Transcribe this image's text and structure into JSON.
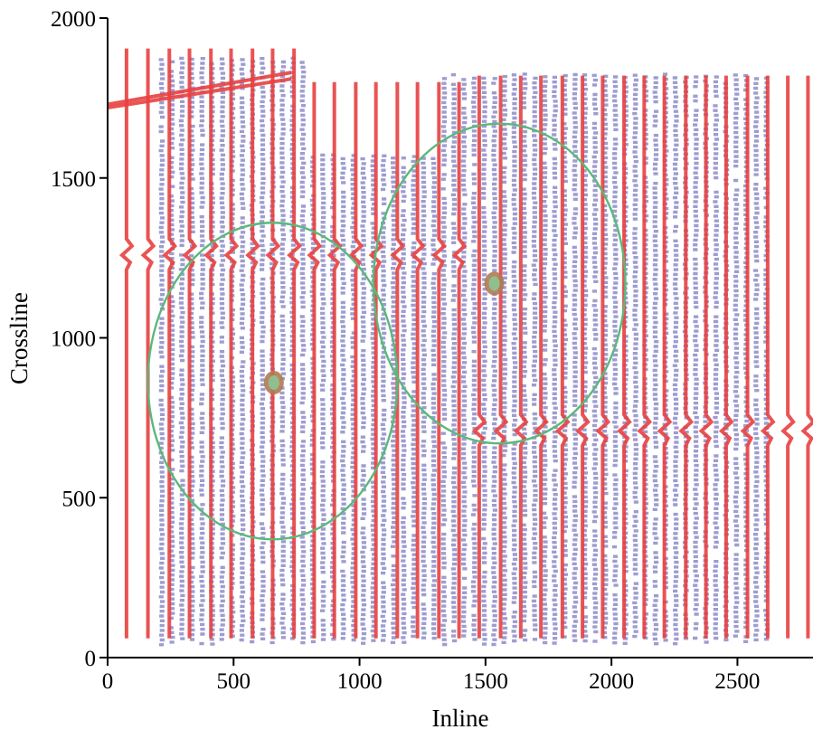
{
  "chart_data": {
    "type": "scatter",
    "xlabel": "Inline",
    "ylabel": "Crossline",
    "xlim": [
      0,
      2800
    ],
    "ylim": [
      0,
      2000
    ],
    "x_ticks": [
      0,
      500,
      1000,
      1500,
      2000,
      2500
    ],
    "y_ticks": [
      0,
      500,
      1000,
      1500,
      2000
    ],
    "grid": false,
    "colors": {
      "survey_points": "#8c8cc8",
      "survey_lines": "#e84040",
      "circles": "#5cb87a",
      "well_outer": "#b07a52",
      "well_inner": "#8fbf8f"
    },
    "survey_lines_inline": [
      75,
      160,
      245,
      325,
      410,
      490,
      575,
      655,
      740,
      820,
      900,
      985,
      1065,
      1150,
      1230,
      1315,
      1395,
      1475,
      1560,
      1640,
      1720,
      1805,
      1885,
      1965,
      2050,
      2130,
      2210,
      2295,
      2375,
      2455,
      2540,
      2620,
      2700,
      2780
    ],
    "wells": [
      {
        "inline": 660,
        "crossline": 860
      },
      {
        "inline": 1535,
        "crossline": 1170
      }
    ],
    "circles": [
      {
        "center_inline": 655,
        "center_crossline": 865,
        "radius": 495
      },
      {
        "center_inline": 1555,
        "center_crossline": 1170,
        "radius": 500
      }
    ]
  }
}
